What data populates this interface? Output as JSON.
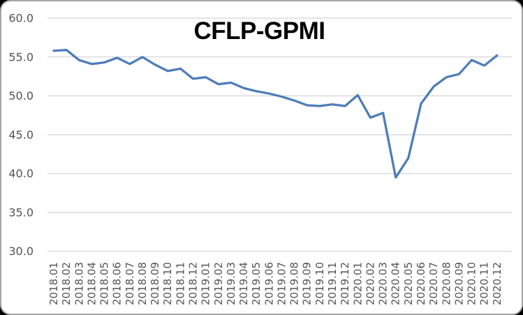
{
  "page": {
    "background_color": "#000000"
  },
  "card": {
    "background_color": "#ffffff",
    "border_color": "#a6a6a6"
  },
  "chart_data": {
    "type": "line",
    "title": "CFLP-GPMI",
    "xlabel": "",
    "ylabel": "",
    "ylim": [
      30,
      60
    ],
    "ytick_labels": [
      "60.0",
      "55.0",
      "50.0",
      "45.0",
      "40.0",
      "35.0",
      "30.0"
    ],
    "grid": "horizontal",
    "legend": "none",
    "x_tick_rotation": -90,
    "categories": [
      "2018.01",
      "2018.02",
      "2018.03",
      "2018.04",
      "2018.05",
      "2018.06",
      "2018.07",
      "2018.08",
      "2018.09",
      "2018.10",
      "2018.11",
      "2018.12",
      "2019.01",
      "2019.02",
      "2019.03",
      "2019.04",
      "2019.05",
      "2019.06",
      "2019.07",
      "2019.08",
      "2019.09",
      "2019.10",
      "2019.11",
      "2019.12",
      "2020.01",
      "2020.02",
      "2020.03",
      "2020.04",
      "2020.05",
      "2020.06",
      "2020.07",
      "2020.08",
      "2020.09",
      "2020.10",
      "2020.11",
      "2020.12"
    ],
    "series": [
      {
        "name": "CFLP-GPMI",
        "color": "#4e7dba",
        "values": [
          55.8,
          55.9,
          54.6,
          54.1,
          54.3,
          54.9,
          54.1,
          55.0,
          54.0,
          53.2,
          53.5,
          52.2,
          52.4,
          51.5,
          51.7,
          51.0,
          50.6,
          50.3,
          49.9,
          49.4,
          48.8,
          48.7,
          48.9,
          48.7,
          50.1,
          47.2,
          47.8,
          39.5,
          42.0,
          49.0,
          51.2,
          52.4,
          52.8,
          54.6,
          53.9,
          55.2
        ]
      }
    ],
    "colors": {
      "gridline": "#c9c9c9",
      "tick_label": "#545454",
      "title": "#000000"
    }
  }
}
